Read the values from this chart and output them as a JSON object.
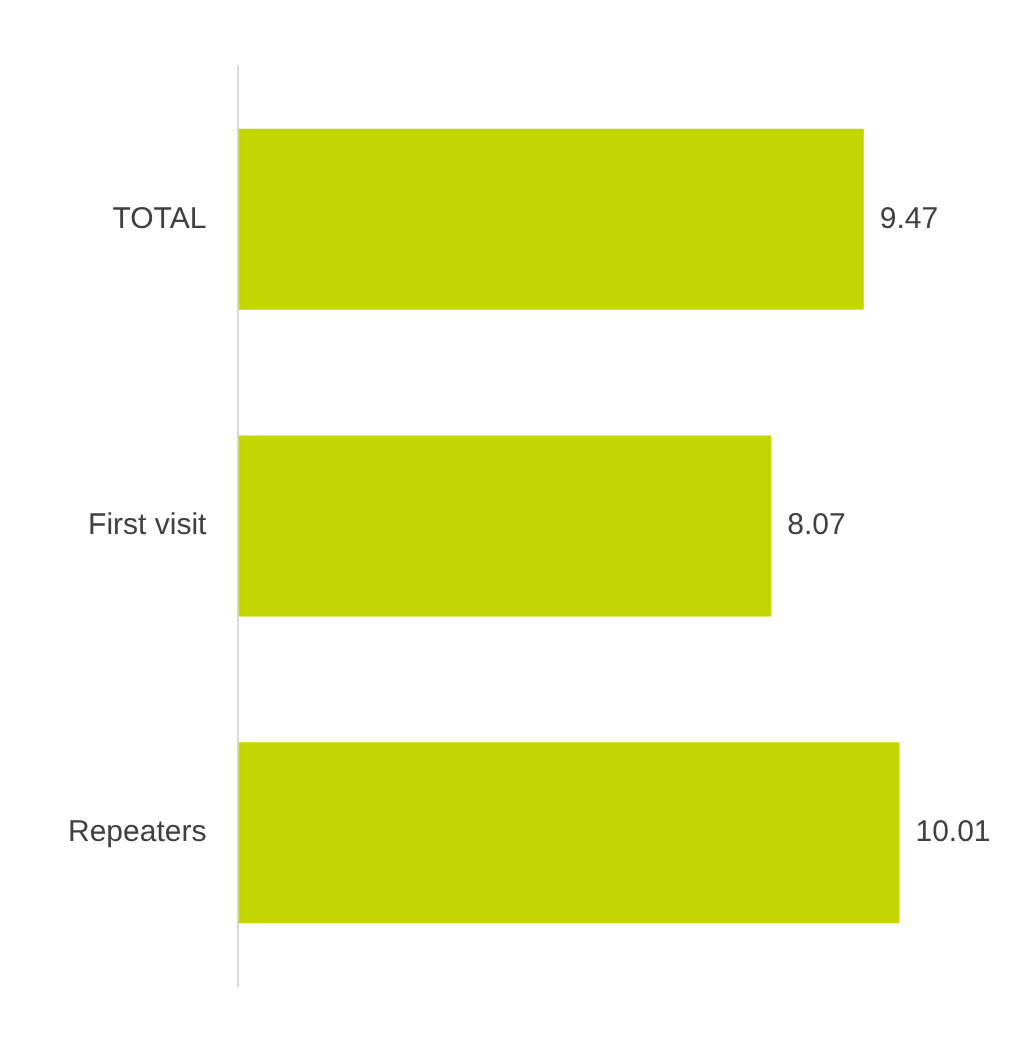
{
  "chart_data": {
    "type": "bar",
    "orientation": "horizontal",
    "categories": [
      "TOTAL",
      "First visit",
      "Repeaters"
    ],
    "values": [
      9.47,
      8.07,
      10.01
    ],
    "colors": [
      "#c4d600",
      "#c4d600",
      "#c4d600"
    ],
    "data_labels": true,
    "tick_labels": "y"
  }
}
